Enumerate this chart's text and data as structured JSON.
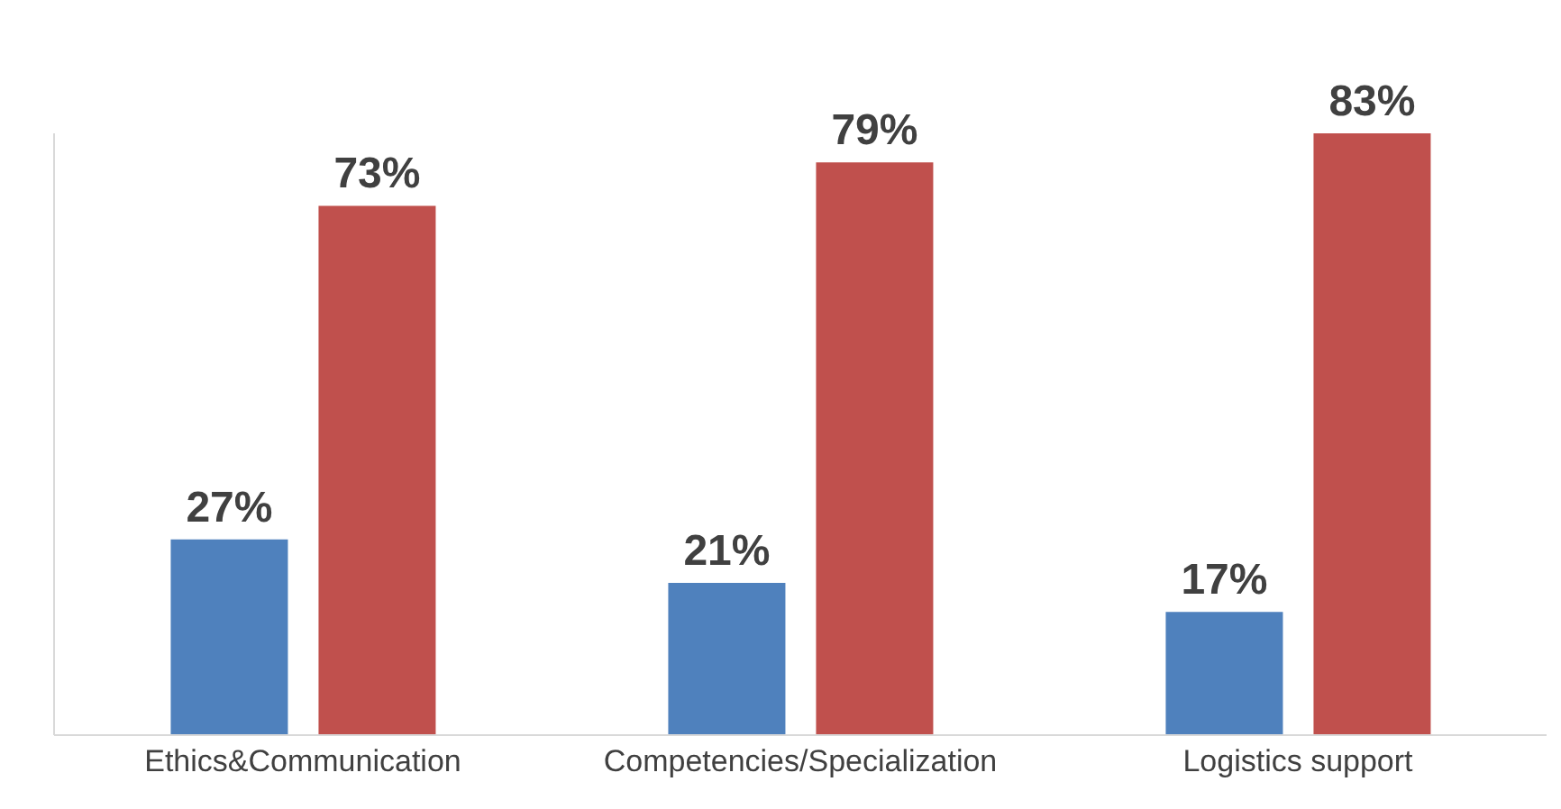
{
  "chart_data": {
    "type": "bar",
    "categories": [
      "Ethics&Communication",
      "Competencies/Specialization",
      "Logistics support"
    ],
    "series": [
      {
        "color": "#4f81bd",
        "values": [
          27,
          21,
          17
        ],
        "value_labels": [
          "27%",
          "21%",
          "17%"
        ]
      },
      {
        "color": "#c0504d",
        "values": [
          73,
          79,
          83
        ],
        "value_labels": [
          "73%",
          "79%",
          "83%"
        ]
      }
    ],
    "tick_labels": "x"
  }
}
